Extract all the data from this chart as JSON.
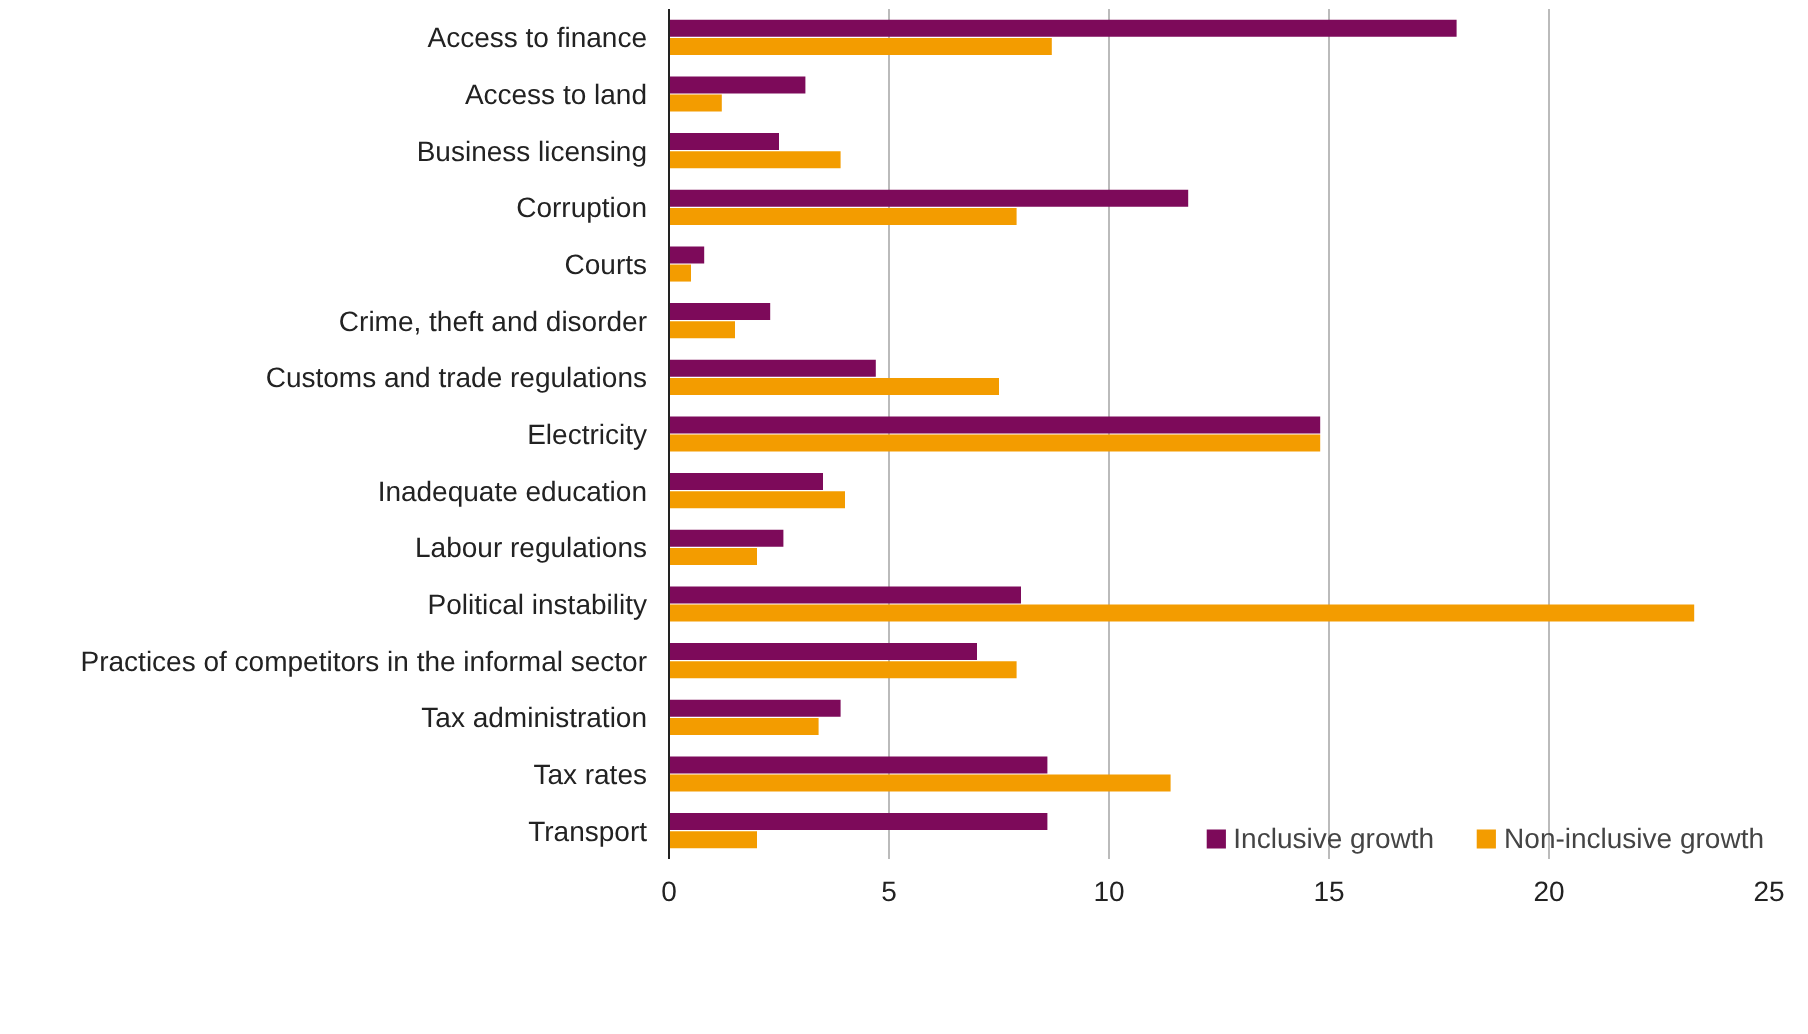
{
  "chart_data": {
    "type": "bar",
    "orientation": "horizontal",
    "categories": [
      "Access to finance",
      "Access to land",
      "Business licensing",
      "Corruption",
      "Courts",
      "Crime, theft and disorder",
      "Customs and trade regulations",
      "Electricity",
      "Inadequate education",
      "Labour regulations",
      "Political instability",
      "Practices of competitors in the informal sector",
      "Tax administration",
      "Tax rates",
      "Transport"
    ],
    "series": [
      {
        "name": "Inclusive growth",
        "color": "#7d0a5a",
        "values": [
          17.9,
          3.1,
          2.5,
          11.8,
          0.8,
          2.3,
          4.7,
          14.8,
          3.5,
          2.6,
          8.0,
          7.0,
          3.9,
          8.6,
          8.6
        ]
      },
      {
        "name": "Non-inclusive growth",
        "color": "#f39c00",
        "values": [
          8.7,
          1.2,
          3.9,
          7.9,
          0.5,
          1.5,
          7.5,
          14.8,
          4.0,
          2.0,
          23.3,
          7.9,
          3.4,
          11.4,
          2.0
        ]
      }
    ],
    "xlim": [
      0,
      25
    ],
    "xticks": [
      0,
      5,
      10,
      15,
      20,
      25
    ],
    "grid": "x",
    "legend": "bottom right"
  }
}
